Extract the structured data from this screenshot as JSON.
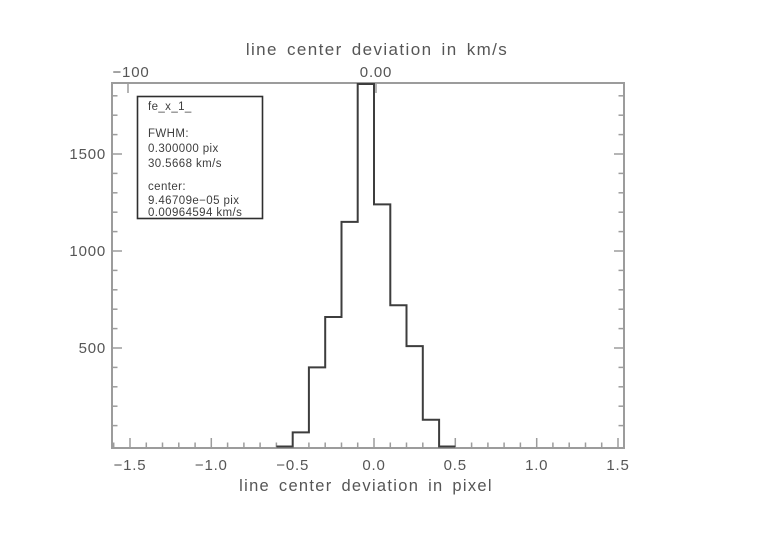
{
  "title_top": "line center deviation in km/s",
  "xlabel_bottom": "line center deviation in pixel",
  "legend_box": {
    "name": "fe_x_1_",
    "fwhm_label": "FWHM:",
    "fwhm_pix": "0.300000 pix",
    "fwhm_kms": "30.5668 km/s",
    "center_label": "center:",
    "center_pix": "9.46709e−05 pix",
    "center_kms": "0.00964594 km/s"
  },
  "colors": {
    "background": "#ffffff",
    "axis": "#9c9c9c",
    "histogram_line": "#3d3d3d",
    "legend_border": "#2f2f2f",
    "text": "#565656"
  },
  "chart_data": {
    "type": "bar",
    "subtype": "step-histogram",
    "title": "line center deviation in km/s",
    "xlabel": "line center deviation in pixel",
    "grid": false,
    "legend_position": "top-left",
    "x_axis_bottom": {
      "units": "pixel",
      "xlim": [
        -1.61,
        1.54
      ],
      "major_ticks": [
        -1.5,
        -1.0,
        -0.5,
        0.0,
        0.5,
        1.0,
        1.5
      ],
      "tick_labels": [
        "−1.5",
        "−1.0",
        "−0.5",
        "0.0",
        "0.5",
        "1.0",
        "1.5"
      ],
      "minor_tick_step": 0.1
    },
    "x_axis_top": {
      "units": "km/s",
      "ticks": [
        {
          "value": -100,
          "label": "−100"
        },
        {
          "value": 0,
          "label": "0.00"
        }
      ]
    },
    "y_axis": {
      "label": "",
      "range": [
        0,
        1905
      ],
      "major_ticks": [
        500,
        1000,
        1500
      ],
      "tick_labels": [
        "500",
        "1000",
        "1500"
      ],
      "minor_tick_step": 100
    },
    "bins": {
      "width": 0.1,
      "centers": [
        -0.55,
        -0.45,
        -0.35,
        -0.25,
        -0.15,
        -0.05,
        0.05,
        0.15,
        0.25,
        0.35,
        0.45
      ],
      "counts": [
        0,
        65,
        400,
        660,
        1150,
        1900,
        1240,
        720,
        510,
        130,
        0
      ],
      "peak_clipped_at_plot_top": true
    }
  }
}
